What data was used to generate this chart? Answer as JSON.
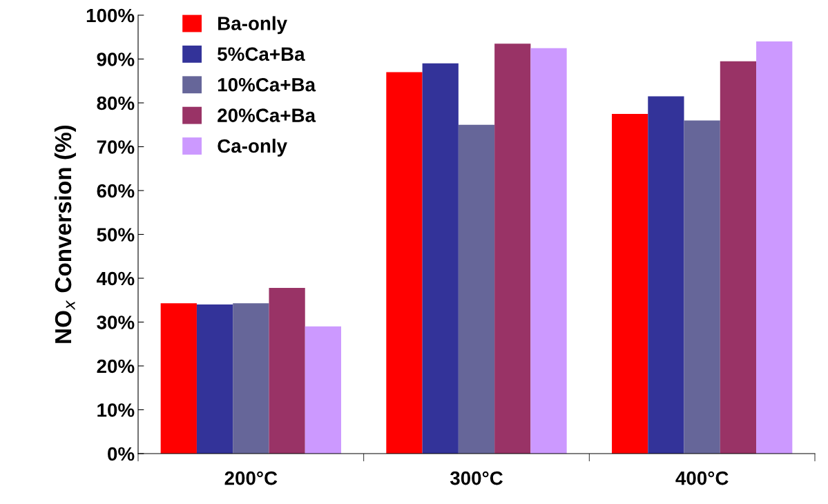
{
  "chart_data": {
    "type": "bar",
    "ylabel": "NO$_{x}$ Conversion (%)",
    "categories": [
      "200°C",
      "300°C",
      "400°C"
    ],
    "series": [
      {
        "name": "Ba-only",
        "color": "#ff0000",
        "values": [
          34.3,
          87,
          77.5
        ]
      },
      {
        "name": "5%Ca+Ba",
        "color": "#333399",
        "values": [
          34,
          89,
          81.5
        ]
      },
      {
        "name": "10%Ca+Ba",
        "color": "#666699",
        "values": [
          34.3,
          75,
          76
        ]
      },
      {
        "name": "20%Ca+Ba",
        "color": "#993366",
        "values": [
          37.8,
          93.5,
          89.5
        ]
      },
      {
        "name": "Ca-only",
        "color": "#cc99ff",
        "values": [
          29,
          92.5,
          94
        ]
      }
    ],
    "ylim": [
      0,
      100
    ],
    "yticks": [
      {
        "value": 0,
        "label": "0%"
      },
      {
        "value": 10,
        "label": "10%"
      },
      {
        "value": 20,
        "label": "20%"
      },
      {
        "value": 30,
        "label": "30%"
      },
      {
        "value": 40,
        "label": "40%"
      },
      {
        "value": 50,
        "label": "50%"
      },
      {
        "value": 60,
        "label": "60%"
      },
      {
        "value": 70,
        "label": "70%"
      },
      {
        "value": 80,
        "label": "80%"
      },
      {
        "value": 90,
        "label": "90%"
      },
      {
        "value": 100,
        "label": "100%"
      }
    ],
    "grid": false,
    "legend": "top left"
  }
}
